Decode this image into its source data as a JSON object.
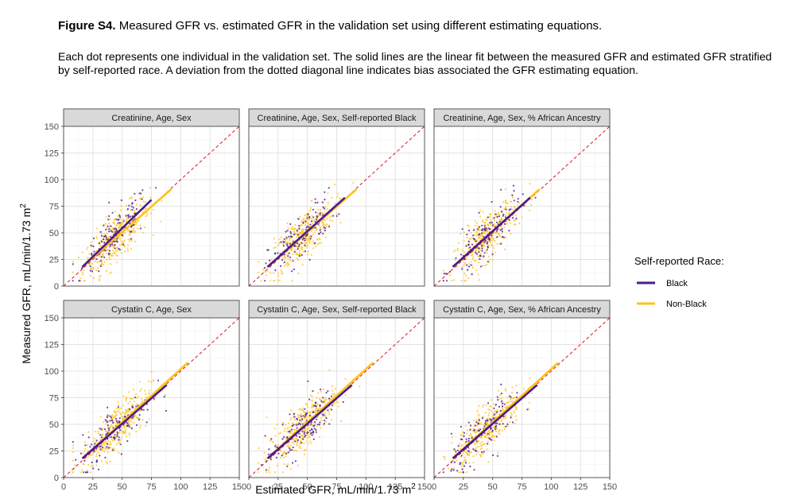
{
  "caption": {
    "figure_label": "Figure S4.",
    "title": "Measured GFR vs. estimated GFR in the validation set using different estimating equations.",
    "body": "Each dot represents one individual in the validation set. The solid lines are the linear fit between the measured GFR and estimated GFR stratified by self-reported race. A deviation from the dotted diagonal line indicates bias associated the GFR estimating equation."
  },
  "chart_data": {
    "type": "scatter",
    "xlabel": "Estimated GFR, mL/min/1.73 m",
    "xlabel_sup": "2",
    "ylabel": "Measured GFR, mL/min/1.73 m",
    "ylabel_sup": "2",
    "xlim": [
      0,
      150
    ],
    "ylim": [
      0,
      150
    ],
    "x_ticks": [
      0,
      25,
      50,
      75,
      100,
      125,
      150
    ],
    "y_ticks": [
      0,
      25,
      50,
      75,
      100,
      125,
      150
    ],
    "grid": true,
    "reference_line": "identity (dashed red)",
    "legend": {
      "title": "Self-reported Race:",
      "placement": "right",
      "items": [
        {
          "name": "Black",
          "color": "#4b1c8c"
        },
        {
          "name": "Non-Black",
          "color": "#ffc21a"
        }
      ]
    },
    "panels": [
      {
        "title": "Creatinine, Age, Sex",
        "fits": [
          {
            "series": "Black",
            "x": [
              16,
              75
            ],
            "y": [
              18,
              81
            ]
          },
          {
            "series": "Non-Black",
            "x": [
              16,
              92
            ],
            "y": [
              18,
              91
            ]
          }
        ]
      },
      {
        "title": "Creatinine, Age, Sex, Self-reported Black",
        "fits": [
          {
            "series": "Black",
            "x": [
              16,
              82
            ],
            "y": [
              18,
              83
            ]
          },
          {
            "series": "Non-Black",
            "x": [
              16,
              92
            ],
            "y": [
              18,
              91
            ]
          }
        ]
      },
      {
        "title": "Creatinine, Age, Sex, % African Ancestry",
        "fits": [
          {
            "series": "Black",
            "x": [
              16,
              82
            ],
            "y": [
              18,
              83
            ]
          },
          {
            "series": "Non-Black",
            "x": [
              16,
              90
            ],
            "y": [
              18,
              91
            ]
          }
        ]
      },
      {
        "title": "Cystatin C, Age, Sex",
        "fits": [
          {
            "series": "Black",
            "x": [
              16,
              88
            ],
            "y": [
              18,
              87
            ]
          },
          {
            "series": "Non-Black",
            "x": [
              16,
              106
            ],
            "y": [
              18,
              108
            ]
          }
        ]
      },
      {
        "title": "Cystatin C, Age, Sex, Self-reported Black",
        "fits": [
          {
            "series": "Black",
            "x": [
              16,
              88
            ],
            "y": [
              18,
              87
            ]
          },
          {
            "series": "Non-Black",
            "x": [
              16,
              106
            ],
            "y": [
              18,
              108
            ]
          }
        ]
      },
      {
        "title": "Cystatin C, Age, Sex, % African Ancestry",
        "fits": [
          {
            "series": "Black",
            "x": [
              16,
              88
            ],
            "y": [
              18,
              87
            ]
          },
          {
            "series": "Non-Black",
            "x": [
              16,
              106
            ],
            "y": [
              18,
              108
            ]
          }
        ]
      }
    ]
  }
}
